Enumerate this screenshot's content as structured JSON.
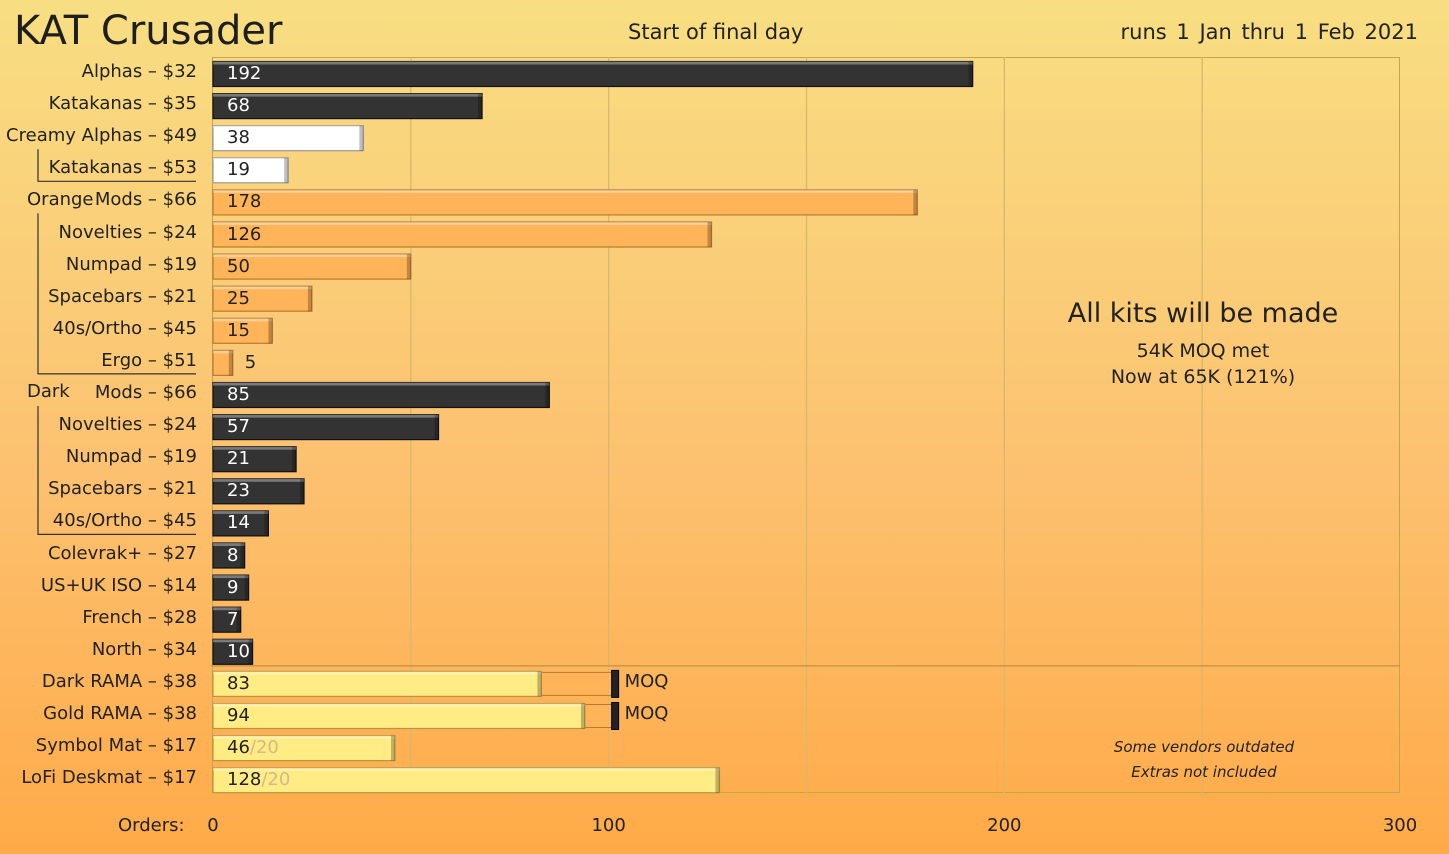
{
  "header": {
    "title": "KAT Crusader",
    "subtitle": "Start of final day",
    "dates": "runs 1 Jan thru 1 Feb 2021"
  },
  "note": {
    "title": "All kits will be made",
    "line1": "54K MOQ met",
    "line2": "Now at 65K (121%)"
  },
  "footnote": {
    "line1": "Some vendors outdated",
    "line2": "Extras not included"
  },
  "axis_label": "Orders:",
  "group_labels": {
    "orange": "Orange",
    "dark": "Dark"
  },
  "colors": {
    "background_top": "#f8de82",
    "background_bottom": "#ffaa48",
    "dark_bar": "#333333",
    "white_bar": "#ffffff",
    "orange_bar": "#ffb45a",
    "yellow_bar": "#ffec84",
    "grid": "#d8b86a"
  },
  "chart_data": {
    "type": "bar",
    "orientation": "horizontal",
    "title": "KAT Crusader",
    "subtitle": "Start of final day",
    "xlabel": "Orders:",
    "xlim": [
      0,
      300
    ],
    "xticks": [
      0,
      100,
      200,
      300
    ],
    "moq_label": "MOQ",
    "bars": [
      {
        "label": "Alphas – $32",
        "value": 192,
        "color": "dark"
      },
      {
        "label": "Katakanas – $35",
        "value": 68,
        "color": "dark"
      },
      {
        "label": "Creamy Alphas – $49",
        "value": 38,
        "color": "white"
      },
      {
        "label": "Katakanas – $53",
        "value": 19,
        "color": "white"
      },
      {
        "label": "Mods – $66",
        "value": 178,
        "color": "orange",
        "group": "Orange"
      },
      {
        "label": "Novelties – $24",
        "value": 126,
        "color": "orange"
      },
      {
        "label": "Numpad – $19",
        "value": 50,
        "color": "orange"
      },
      {
        "label": "Spacebars – $21",
        "value": 25,
        "color": "orange"
      },
      {
        "label": "40s/Ortho – $45",
        "value": 15,
        "color": "orange"
      },
      {
        "label": "Ergo – $51",
        "value": 5,
        "color": "orange"
      },
      {
        "label": "Mods – $66",
        "value": 85,
        "color": "dark",
        "group": "Dark"
      },
      {
        "label": "Novelties – $24",
        "value": 57,
        "color": "dark"
      },
      {
        "label": "Numpad – $19",
        "value": 21,
        "color": "dark"
      },
      {
        "label": "Spacebars – $21",
        "value": 23,
        "color": "dark"
      },
      {
        "label": "40s/Ortho – $45",
        "value": 14,
        "color": "dark"
      },
      {
        "label": "Colevrak+ – $27",
        "value": 8,
        "color": "dark"
      },
      {
        "label": "US+UK ISO – $14",
        "value": 9,
        "color": "dark"
      },
      {
        "label": "French – $28",
        "value": 7,
        "color": "dark"
      },
      {
        "label": "North – $34",
        "value": 10,
        "color": "dark"
      },
      {
        "label": "Dark RAMA – $38",
        "value": 83,
        "color": "yellow",
        "moq": 101
      },
      {
        "label": "Gold RAMA – $38",
        "value": 94,
        "color": "yellow",
        "moq": 101
      },
      {
        "label": "Symbol Mat – $17",
        "value": 46,
        "color": "yellow",
        "extra": "/20"
      },
      {
        "label": "LoFi Deskmat – $17",
        "value": 128,
        "color": "yellow",
        "extra": "/20"
      }
    ]
  }
}
